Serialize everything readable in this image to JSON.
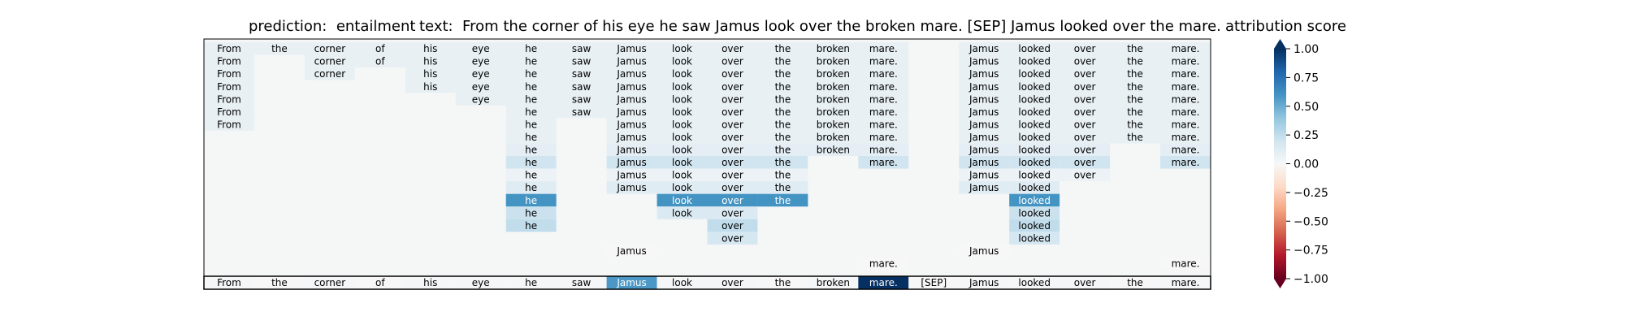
{
  "chart_data": {
    "type": "heatmap",
    "title_left": "prediction:  entailment",
    "title_center": "text:  From the corner of his eye he saw Jamus look over the broken mare. [SEP] Jamus looked over the mare.",
    "colorbar_title": "attribution score",
    "tokens": [
      "From",
      "the",
      "corner",
      "of",
      "his",
      "eye",
      "he",
      "saw",
      "Jamus",
      "look",
      "over",
      "the",
      "broken",
      "mare.",
      "[SEP]",
      "Jamus",
      "looked",
      "over",
      "the",
      "mare."
    ],
    "colorbar": {
      "min": -1.0,
      "max": 1.0,
      "ticks": [
        1.0,
        0.75,
        0.5,
        0.25,
        0.0,
        -0.25,
        -0.5,
        -0.75,
        -1.0
      ],
      "tick_labels": [
        "1.00",
        "0.75",
        "0.50",
        "0.25",
        "0.00",
        "−0.25",
        "−0.50",
        "−0.75",
        "−1.00"
      ]
    },
    "rows": [
      [
        0.08,
        0.08,
        0.08,
        0.08,
        0.08,
        0.08,
        0.08,
        0.08,
        0.08,
        0.08,
        0.08,
        0.08,
        0.08,
        0.08,
        null,
        0.08,
        0.08,
        0.08,
        0.08,
        0.08
      ],
      [
        0.08,
        null,
        0.08,
        0.08,
        0.08,
        0.08,
        0.08,
        0.08,
        0.08,
        0.08,
        0.08,
        0.08,
        0.08,
        0.08,
        null,
        0.08,
        0.08,
        0.08,
        0.08,
        0.08
      ],
      [
        0.08,
        null,
        0.08,
        null,
        0.08,
        0.08,
        0.08,
        0.08,
        0.08,
        0.08,
        0.08,
        0.08,
        0.08,
        0.08,
        null,
        0.08,
        0.08,
        0.08,
        0.08,
        0.08
      ],
      [
        0.08,
        null,
        null,
        null,
        0.08,
        0.08,
        0.08,
        0.08,
        0.08,
        0.08,
        0.08,
        0.08,
        0.08,
        0.08,
        null,
        0.08,
        0.08,
        0.08,
        0.08,
        0.08
      ],
      [
        0.08,
        null,
        null,
        null,
        null,
        0.08,
        0.08,
        0.08,
        0.08,
        0.08,
        0.08,
        0.08,
        0.08,
        0.08,
        null,
        0.08,
        0.08,
        0.08,
        0.08,
        0.08
      ],
      [
        0.08,
        null,
        null,
        null,
        null,
        null,
        0.08,
        0.08,
        0.08,
        0.08,
        0.08,
        0.08,
        0.08,
        0.08,
        null,
        0.08,
        0.08,
        0.08,
        0.08,
        0.08
      ],
      [
        0.08,
        null,
        null,
        null,
        null,
        null,
        0.08,
        null,
        0.08,
        0.08,
        0.08,
        0.08,
        0.08,
        0.08,
        null,
        0.08,
        0.08,
        0.08,
        0.08,
        0.08
      ],
      [
        null,
        null,
        null,
        null,
        null,
        null,
        0.08,
        null,
        0.08,
        0.08,
        0.08,
        0.08,
        0.08,
        0.08,
        null,
        0.08,
        0.08,
        0.08,
        0.08,
        0.08
      ],
      [
        null,
        null,
        null,
        null,
        null,
        null,
        0.1,
        null,
        0.1,
        0.1,
        0.1,
        0.1,
        0.1,
        0.1,
        null,
        0.1,
        0.1,
        0.1,
        null,
        0.1
      ],
      [
        null,
        null,
        null,
        null,
        null,
        null,
        0.2,
        null,
        0.2,
        0.2,
        0.2,
        0.2,
        null,
        0.2,
        null,
        0.2,
        0.2,
        0.2,
        null,
        0.2
      ],
      [
        null,
        null,
        null,
        null,
        null,
        null,
        0.06,
        null,
        0.06,
        0.06,
        0.06,
        0.06,
        null,
        null,
        null,
        0.06,
        0.06,
        0.06,
        null,
        null
      ],
      [
        null,
        null,
        null,
        null,
        null,
        null,
        0.12,
        null,
        0.12,
        0.12,
        0.12,
        0.12,
        null,
        null,
        null,
        0.12,
        0.12,
        null,
        null,
        null
      ],
      [
        null,
        null,
        null,
        null,
        null,
        null,
        0.6,
        null,
        null,
        0.6,
        0.6,
        0.6,
        null,
        null,
        null,
        null,
        0.6,
        null,
        null,
        null
      ],
      [
        null,
        null,
        null,
        null,
        null,
        null,
        0.22,
        null,
        null,
        0.15,
        0.15,
        null,
        null,
        null,
        null,
        null,
        0.22,
        null,
        null,
        null
      ],
      [
        null,
        null,
        null,
        null,
        null,
        null,
        0.25,
        null,
        null,
        null,
        0.25,
        null,
        null,
        null,
        null,
        null,
        0.25,
        null,
        null,
        null
      ],
      [
        null,
        null,
        null,
        null,
        null,
        null,
        null,
        null,
        null,
        null,
        0.18,
        null,
        null,
        null,
        null,
        null,
        0.18,
        null,
        null,
        null
      ],
      [
        null,
        null,
        null,
        null,
        null,
        null,
        null,
        null,
        0.0,
        null,
        null,
        null,
        null,
        null,
        null,
        0.0,
        null,
        null,
        null,
        null
      ],
      [
        null,
        null,
        null,
        null,
        null,
        null,
        null,
        null,
        null,
        null,
        null,
        null,
        null,
        0.0,
        null,
        null,
        null,
        null,
        null,
        0.0
      ]
    ],
    "final_row": [
      0.01,
      0.0,
      0.01,
      0.0,
      0.01,
      0.01,
      0.01,
      0.01,
      0.58,
      0.01,
      0.01,
      0.0,
      0.01,
      1.0,
      0.0,
      0.01,
      0.01,
      0.01,
      0.0,
      0.01
    ]
  }
}
